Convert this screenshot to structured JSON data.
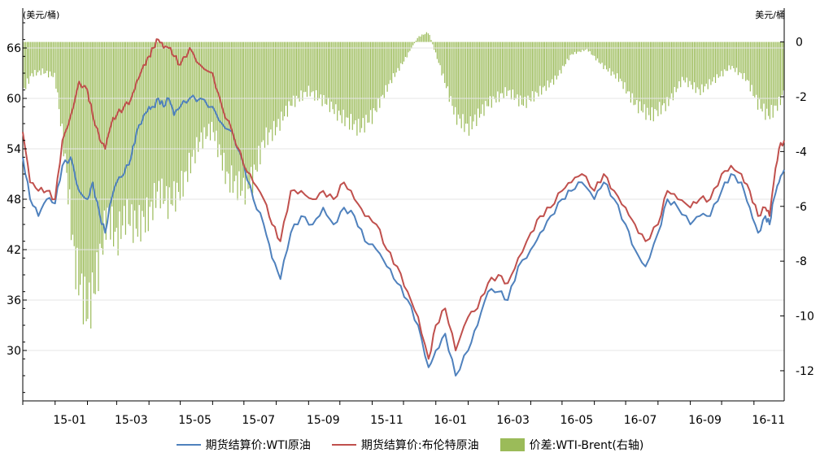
{
  "chart_data": {
    "type": "line",
    "left_unit": "(美元/桶)",
    "right_unit": "美元/桶",
    "y_left": {
      "ticks": [
        66,
        60,
        54,
        48,
        42,
        36,
        30
      ],
      "range": [
        24,
        69
      ]
    },
    "y_right": {
      "ticks": [
        0,
        -2,
        -4,
        -6,
        -8,
        -10,
        -12
      ],
      "range": [
        -13.1,
        0.7
      ]
    },
    "x_ticks": [
      "15-01",
      "15-03",
      "15-05",
      "15-07",
      "15-09",
      "15-11",
      "16-01",
      "16-03",
      "16-05",
      "16-07",
      "16-09",
      "16-11"
    ],
    "x_start_month": "2014-12",
    "x_end_month": "2016-11",
    "colors": {
      "wti": "#4f81bd",
      "brent": "#c0504d",
      "spread": "#9bbb59"
    },
    "series": [
      {
        "name": "期货结算价:WTI原油",
        "axis": "left",
        "points": [
          [
            "2014-12-01",
            53
          ],
          [
            "2014-12-08",
            48
          ],
          [
            "2014-12-16",
            46
          ],
          [
            "2014-12-24",
            48
          ],
          [
            "2015-01-01",
            47.5
          ],
          [
            "2015-01-08",
            52
          ],
          [
            "2015-01-16",
            53
          ],
          [
            "2015-01-24",
            49
          ],
          [
            "2015-02-01",
            48
          ],
          [
            "2015-02-06",
            50
          ],
          [
            "2015-02-13",
            46
          ],
          [
            "2015-02-18",
            44
          ],
          [
            "2015-02-24",
            48
          ],
          [
            "2015-03-01",
            50
          ],
          [
            "2015-03-08",
            51
          ],
          [
            "2015-03-15",
            53
          ],
          [
            "2015-03-20",
            56
          ],
          [
            "2015-03-27",
            58
          ],
          [
            "2015-04-01",
            59
          ],
          [
            "2015-04-05",
            59
          ],
          [
            "2015-04-10",
            60
          ],
          [
            "2015-04-15",
            59
          ],
          [
            "2015-04-20",
            60
          ],
          [
            "2015-04-25",
            58
          ],
          [
            "2015-05-01",
            59
          ],
          [
            "2015-05-10",
            60
          ],
          [
            "2015-05-20",
            60
          ],
          [
            "2015-06-01",
            59
          ],
          [
            "2015-06-10",
            57
          ],
          [
            "2015-06-20",
            56
          ],
          [
            "2015-07-01",
            52
          ],
          [
            "2015-07-10",
            48
          ],
          [
            "2015-07-20",
            45
          ],
          [
            "2015-07-28",
            41
          ],
          [
            "2015-08-05",
            38.5
          ],
          [
            "2015-08-15",
            44
          ],
          [
            "2015-08-25",
            46
          ],
          [
            "2015-09-05",
            45
          ],
          [
            "2015-09-15",
            47
          ],
          [
            "2015-09-25",
            45
          ],
          [
            "2015-10-05",
            47
          ],
          [
            "2015-10-15",
            46
          ],
          [
            "2015-10-25",
            43
          ],
          [
            "2015-11-05",
            42
          ],
          [
            "2015-11-15",
            40
          ],
          [
            "2015-11-25",
            38
          ],
          [
            "2015-12-05",
            36
          ],
          [
            "2015-12-15",
            33
          ],
          [
            "2015-12-25",
            28
          ],
          [
            "2016-01-01",
            30
          ],
          [
            "2016-01-10",
            32
          ],
          [
            "2016-01-20",
            27
          ],
          [
            "2016-02-01",
            30
          ],
          [
            "2016-02-10",
            33
          ],
          [
            "2016-02-20",
            37
          ],
          [
            "2016-03-01",
            37
          ],
          [
            "2016-03-10",
            36
          ],
          [
            "2016-03-20",
            40
          ],
          [
            "2016-04-01",
            42
          ],
          [
            "2016-04-10",
            44
          ],
          [
            "2016-04-20",
            46
          ],
          [
            "2016-05-01",
            48
          ],
          [
            "2016-05-10",
            49
          ],
          [
            "2016-05-20",
            50
          ],
          [
            "2016-06-01",
            48
          ],
          [
            "2016-06-10",
            50
          ],
          [
            "2016-06-20",
            48
          ],
          [
            "2016-07-01",
            45
          ],
          [
            "2016-07-10",
            42
          ],
          [
            "2016-07-20",
            40
          ],
          [
            "2016-08-01",
            44
          ],
          [
            "2016-08-10",
            48
          ],
          [
            "2016-08-20",
            47
          ],
          [
            "2016-09-01",
            45
          ],
          [
            "2016-09-10",
            46
          ],
          [
            "2016-09-20",
            46
          ],
          [
            "2016-10-01",
            49
          ],
          [
            "2016-10-10",
            51
          ],
          [
            "2016-10-20",
            50
          ],
          [
            "2016-10-28",
            47
          ],
          [
            "2016-11-05",
            44
          ],
          [
            "2016-11-12",
            46
          ],
          [
            "2016-11-16",
            45
          ],
          [
            "2016-11-20",
            48
          ],
          [
            "2016-11-25",
            50
          ],
          [
            "2016-11-30",
            51.5
          ]
        ]
      },
      {
        "name": "期货结算价:布伦特原油",
        "axis": "left",
        "points": [
          [
            "2014-12-01",
            56
          ],
          [
            "2014-12-08",
            50
          ],
          [
            "2014-12-16",
            49
          ],
          [
            "2014-12-24",
            49
          ],
          [
            "2015-01-01",
            48
          ],
          [
            "2015-01-08",
            55
          ],
          [
            "2015-01-16",
            58
          ],
          [
            "2015-01-24",
            62
          ],
          [
            "2015-02-01",
            61
          ],
          [
            "2015-02-06",
            58
          ],
          [
            "2015-02-13",
            55
          ],
          [
            "2015-02-18",
            54
          ],
          [
            "2015-02-24",
            57
          ],
          [
            "2015-03-01",
            58
          ],
          [
            "2015-03-08",
            59
          ],
          [
            "2015-03-15",
            60
          ],
          [
            "2015-03-20",
            62
          ],
          [
            "2015-03-27",
            64
          ],
          [
            "2015-04-01",
            65
          ],
          [
            "2015-04-05",
            66
          ],
          [
            "2015-04-10",
            67
          ],
          [
            "2015-04-15",
            66
          ],
          [
            "2015-04-20",
            66
          ],
          [
            "2015-04-25",
            65
          ],
          [
            "2015-05-01",
            64
          ],
          [
            "2015-05-10",
            66
          ],
          [
            "2015-05-20",
            64
          ],
          [
            "2015-06-01",
            63
          ],
          [
            "2015-06-10",
            59
          ],
          [
            "2015-06-20",
            56
          ],
          [
            "2015-07-01",
            52
          ],
          [
            "2015-07-10",
            50
          ],
          [
            "2015-07-20",
            48
          ],
          [
            "2015-07-28",
            45
          ],
          [
            "2015-08-05",
            43
          ],
          [
            "2015-08-15",
            49
          ],
          [
            "2015-08-25",
            49
          ],
          [
            "2015-09-05",
            48
          ],
          [
            "2015-09-15",
            49
          ],
          [
            "2015-09-25",
            48
          ],
          [
            "2015-10-05",
            50
          ],
          [
            "2015-10-15",
            48
          ],
          [
            "2015-10-25",
            46
          ],
          [
            "2015-11-05",
            45
          ],
          [
            "2015-11-15",
            42
          ],
          [
            "2015-11-25",
            40
          ],
          [
            "2015-12-05",
            37
          ],
          [
            "2015-12-15",
            34
          ],
          [
            "2015-12-25",
            29
          ],
          [
            "2016-01-01",
            33
          ],
          [
            "2016-01-10",
            35
          ],
          [
            "2016-01-20",
            30
          ],
          [
            "2016-02-01",
            34
          ],
          [
            "2016-02-10",
            35
          ],
          [
            "2016-02-20",
            38
          ],
          [
            "2016-03-01",
            39
          ],
          [
            "2016-03-10",
            38
          ],
          [
            "2016-03-20",
            41
          ],
          [
            "2016-04-01",
            44
          ],
          [
            "2016-04-10",
            46
          ],
          [
            "2016-04-20",
            47
          ],
          [
            "2016-05-01",
            49
          ],
          [
            "2016-05-10",
            50
          ],
          [
            "2016-05-20",
            51
          ],
          [
            "2016-06-01",
            49
          ],
          [
            "2016-06-10",
            51
          ],
          [
            "2016-06-20",
            49
          ],
          [
            "2016-07-01",
            47
          ],
          [
            "2016-07-10",
            45
          ],
          [
            "2016-07-20",
            43
          ],
          [
            "2016-08-01",
            45
          ],
          [
            "2016-08-10",
            49
          ],
          [
            "2016-08-20",
            48
          ],
          [
            "2016-09-01",
            47
          ],
          [
            "2016-09-10",
            48
          ],
          [
            "2016-09-20",
            48
          ],
          [
            "2016-10-01",
            51
          ],
          [
            "2016-10-10",
            52
          ],
          [
            "2016-10-20",
            51
          ],
          [
            "2016-10-28",
            49
          ],
          [
            "2016-11-05",
            46
          ],
          [
            "2016-11-12",
            47
          ],
          [
            "2016-11-16",
            46
          ],
          [
            "2016-11-20",
            50
          ],
          [
            "2016-11-25",
            54
          ],
          [
            "2016-11-30",
            55
          ]
        ]
      },
      {
        "name": "价差:WTI-Brent(右轴)",
        "axis": "right",
        "type": "bar",
        "points": [
          [
            "2014-12-01",
            -2.0
          ],
          [
            "2014-12-10",
            -1.3
          ],
          [
            "2014-12-20",
            -1.2
          ],
          [
            "2015-01-01",
            -1.4
          ],
          [
            "2015-01-10",
            -4.5
          ],
          [
            "2015-01-20",
            -9.0
          ],
          [
            "2015-02-01",
            -11.0
          ],
          [
            "2015-02-10",
            -9.5
          ],
          [
            "2015-02-20",
            -7.0
          ],
          [
            "2015-03-01",
            -8.0
          ],
          [
            "2015-03-10",
            -7.0
          ],
          [
            "2015-03-20",
            -7.5
          ],
          [
            "2015-04-01",
            -7.0
          ],
          [
            "2015-04-10",
            -6.0
          ],
          [
            "2015-04-20",
            -6.5
          ],
          [
            "2015-05-01",
            -6.0
          ],
          [
            "2015-05-10",
            -5.0
          ],
          [
            "2015-05-20",
            -4.0
          ],
          [
            "2015-06-01",
            -3.5
          ],
          [
            "2015-06-15",
            -5.5
          ],
          [
            "2015-07-01",
            -6.0
          ],
          [
            "2015-07-10",
            -5.5
          ],
          [
            "2015-07-20",
            -4.0
          ],
          [
            "2015-08-01",
            -3.5
          ],
          [
            "2015-08-15",
            -2.5
          ],
          [
            "2015-09-01",
            -2.0
          ],
          [
            "2015-09-20",
            -2.5
          ],
          [
            "2015-10-01",
            -3.0
          ],
          [
            "2015-10-20",
            -3.5
          ],
          [
            "2015-11-01",
            -3.0
          ],
          [
            "2015-11-20",
            -1.5
          ],
          [
            "2015-12-01",
            -0.8
          ],
          [
            "2015-12-15",
            0.2
          ],
          [
            "2015-12-25",
            0.4
          ],
          [
            "2016-01-05",
            -1.0
          ],
          [
            "2016-01-20",
            -3.0
          ],
          [
            "2016-02-01",
            -3.5
          ],
          [
            "2016-02-20",
            -2.5
          ],
          [
            "2016-03-10",
            -2.0
          ],
          [
            "2016-03-25",
            -2.5
          ],
          [
            "2016-04-10",
            -2.0
          ],
          [
            "2016-04-25",
            -1.5
          ],
          [
            "2016-05-10",
            -0.5
          ],
          [
            "2016-05-25",
            -0.3
          ],
          [
            "2016-06-10",
            -1.0
          ],
          [
            "2016-06-25",
            -1.5
          ],
          [
            "2016-07-10",
            -2.5
          ],
          [
            "2016-07-25",
            -3.0
          ],
          [
            "2016-08-10",
            -2.5
          ],
          [
            "2016-08-25",
            -1.5
          ],
          [
            "2016-09-10",
            -2.0
          ],
          [
            "2016-09-25",
            -1.5
          ],
          [
            "2016-10-10",
            -1.0
          ],
          [
            "2016-10-25",
            -1.5
          ],
          [
            "2016-11-05",
            -2.5
          ],
          [
            "2016-11-15",
            -3.0
          ],
          [
            "2016-11-25",
            -2.5
          ],
          [
            "2016-11-30",
            -2.0
          ]
        ]
      }
    ]
  }
}
